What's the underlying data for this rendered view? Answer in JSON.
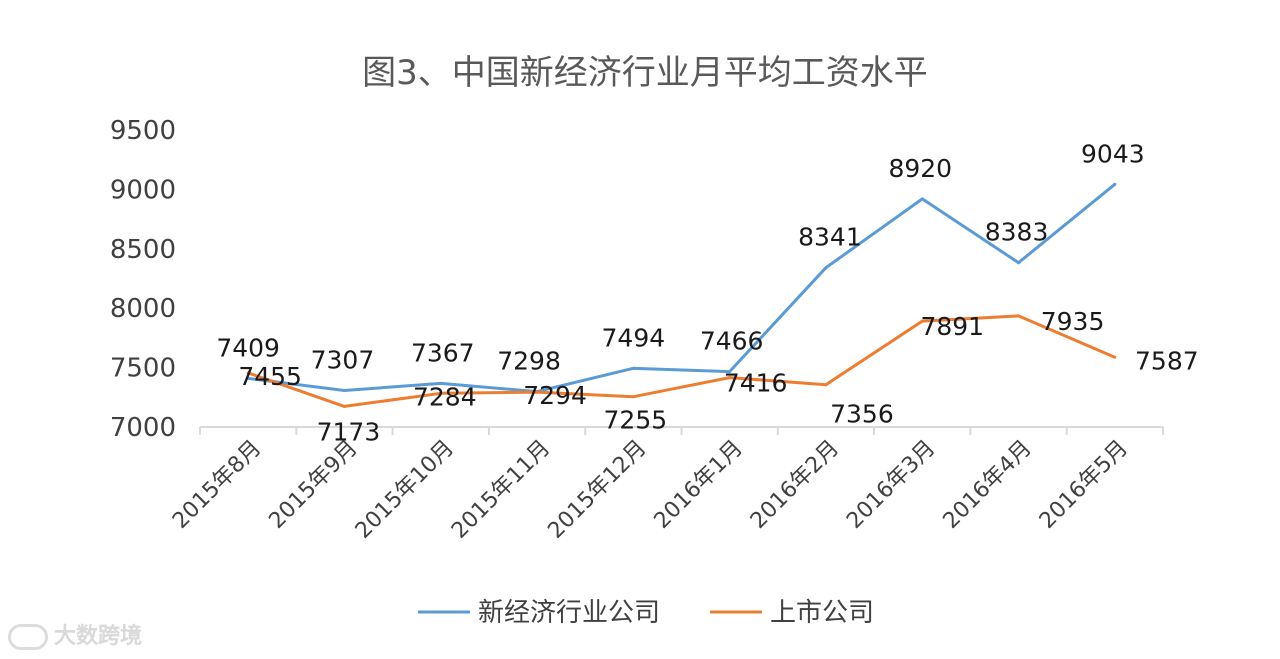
{
  "chart_data": {
    "type": "line",
    "title": "图3、中国新经济行业月平均工资水平",
    "categories": [
      "2015年8月",
      "2015年9月",
      "2015年10月",
      "2015年11月",
      "2015年12月",
      "2016年1月",
      "2016年2月",
      "2016年3月",
      "2016年4月",
      "2016年5月"
    ],
    "ylim": [
      7000,
      9500
    ],
    "yticks": [
      "7000",
      "7500",
      "8000",
      "8500",
      "9000",
      "9500"
    ],
    "grid": false,
    "legend_position": "bottom",
    "series": [
      {
        "name": "新经济行业公司",
        "color": "#5b9bd5",
        "values": [
          7409,
          7307,
          7367,
          7298,
          7494,
          7466,
          8341,
          8920,
          8383,
          9043
        ]
      },
      {
        "name": "上市公司",
        "color": "#ed7d31",
        "values": [
          7455,
          7173,
          7284,
          7294,
          7255,
          7416,
          7356,
          7891,
          7935,
          7587
        ]
      }
    ]
  },
  "watermark": {
    "text": "大数跨境",
    "icon": "chat-bubble-icon"
  }
}
